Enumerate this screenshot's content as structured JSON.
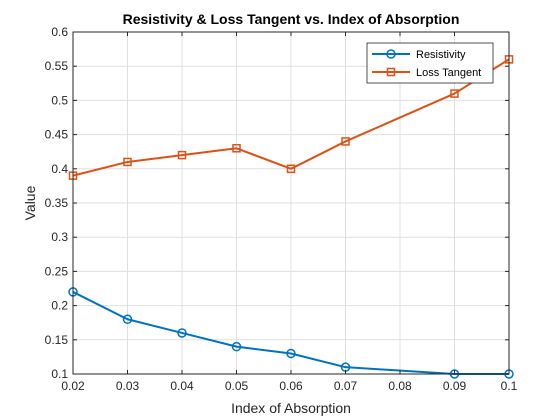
{
  "chart_data": {
    "type": "line",
    "title": "Resistivity & Loss Tangent vs. Index of Absorption",
    "xlabel": "Index of Absorption",
    "ylabel": "Value",
    "xlim": [
      0.02,
      0.1
    ],
    "ylim": [
      0.1,
      0.6
    ],
    "xticks": [
      "0.02",
      "0.03",
      "0.04",
      "0.05",
      "0.06",
      "0.07",
      "0.08",
      "0.09",
      "0.1"
    ],
    "yticks": [
      "0.1",
      "0.15",
      "0.2",
      "0.25",
      "0.3",
      "0.35",
      "0.4",
      "0.45",
      "0.5",
      "0.55",
      "0.6"
    ],
    "grid": true,
    "legend_position": "top-right",
    "series": [
      {
        "name": "Resistivity",
        "color": "#0072BD",
        "marker": "circle",
        "x": [
          0.02,
          0.03,
          0.04,
          0.05,
          0.06,
          0.07,
          0.09,
          0.1
        ],
        "values": [
          0.22,
          0.18,
          0.16,
          0.14,
          0.13,
          0.11,
          0.1,
          0.1
        ]
      },
      {
        "name": "Loss Tangent",
        "color": "#D95319",
        "marker": "square",
        "x": [
          0.02,
          0.03,
          0.04,
          0.05,
          0.06,
          0.07,
          0.09,
          0.1
        ],
        "values": [
          0.39,
          0.41,
          0.42,
          0.43,
          0.4,
          0.44,
          0.51,
          0.56
        ]
      }
    ]
  }
}
